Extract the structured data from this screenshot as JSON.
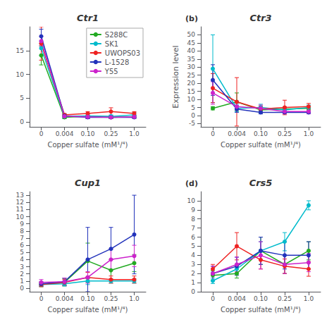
{
  "chart_data": [
    {
      "type": "line",
      "title": "Ctr1",
      "x_label": "Copper sulfate (mM¹/⁴)",
      "categories": [
        "0",
        "0.004",
        "0.10",
        "0.25",
        "1.0"
      ],
      "series": [
        {
          "name": "S288C",
          "color": "#22aa22",
          "values": [
            14.0,
            1.0,
            1.2,
            1.0,
            1.1
          ],
          "yerr": [
            2.0,
            0.3,
            0.5,
            0.3,
            0.3
          ]
        },
        {
          "name": "SK1",
          "color": "#00bbcc",
          "values": [
            15.5,
            1.2,
            1.3,
            1.2,
            1.5
          ],
          "yerr": [
            1.5,
            0.4,
            0.4,
            0.3,
            0.5
          ]
        },
        {
          "name": "UWOPS03",
          "color": "#ee2222",
          "values": [
            16.5,
            1.5,
            1.8,
            2.2,
            1.8
          ],
          "yerr": [
            3.5,
            0.3,
            0.4,
            0.8,
            0.4
          ]
        },
        {
          "name": "L-1528",
          "color": "#2233bb",
          "values": [
            18.0,
            1.3,
            1.0,
            1.0,
            1.0
          ],
          "yerr": [
            1.5,
            0.4,
            0.3,
            0.2,
            0.2
          ]
        },
        {
          "name": "Y55",
          "color": "#cc22cc",
          "values": [
            17.0,
            1.2,
            1.1,
            1.0,
            1.1
          ],
          "yerr": [
            1.0,
            0.3,
            0.3,
            0.3,
            0.3
          ]
        }
      ],
      "ylim": [
        -1,
        20
      ],
      "yticks": [
        0,
        5,
        10,
        15
      ],
      "marker": "circle",
      "grid": false,
      "legend": "upper right"
    },
    {
      "type": "line",
      "title": "Ctr3",
      "x_label": "Copper sulfate (mM¹/⁴)",
      "y_label": "Expression level",
      "annotation": "(b)",
      "categories": [
        "0",
        "0.004",
        "0.10",
        "0.25",
        "1.0"
      ],
      "series": [
        {
          "name": "S288C",
          "color": "#22aa22",
          "values": [
            4.5,
            8.5,
            3.5,
            4.0,
            4.5
          ],
          "yerr": [
            1.0,
            5.5,
            2.0,
            1.5,
            1.5
          ]
        },
        {
          "name": "SK1",
          "color": "#00bbcc",
          "values": [
            29.0,
            4.5,
            5.0,
            3.5,
            5.0
          ],
          "yerr": [
            21.0,
            2.0,
            2.0,
            1.5,
            1.5
          ]
        },
        {
          "name": "UWOPS03",
          "color": "#ee2222",
          "values": [
            17.0,
            8.5,
            4.0,
            5.0,
            5.5
          ],
          "yerr": [
            9.0,
            15.0,
            2.0,
            4.5,
            2.0
          ]
        },
        {
          "name": "L-1528",
          "color": "#2233bb",
          "values": [
            22.0,
            4.0,
            2.0,
            2.0,
            2.0
          ],
          "yerr": [
            9.5,
            2.0,
            1.0,
            0.5,
            0.5
          ]
        },
        {
          "name": "Y55",
          "color": "#cc22cc",
          "values": [
            14.0,
            5.5,
            4.5,
            2.5,
            2.5
          ],
          "yerr": [
            7.0,
            2.0,
            2.0,
            1.5,
            1.5
          ]
        }
      ],
      "ylim": [
        -7,
        55
      ],
      "yticks": [
        -5,
        0,
        5,
        10,
        15,
        20,
        25,
        30,
        35,
        40,
        45,
        50
      ],
      "marker": "circle",
      "grid": false
    },
    {
      "type": "line",
      "title": "Cup1",
      "x_label": "Copper sulfate (mM¹/⁴)",
      "categories": [
        "0",
        "0.004",
        "0.10",
        "0.25",
        "1.0"
      ],
      "series": [
        {
          "name": "S288C",
          "color": "#22aa22",
          "values": [
            0.5,
            0.8,
            3.8,
            2.5,
            3.5
          ],
          "yerr": [
            0.3,
            0.5,
            2.5,
            1.5,
            1.2
          ]
        },
        {
          "name": "SK1",
          "color": "#00bbcc",
          "values": [
            0.5,
            0.6,
            1.0,
            1.0,
            1.0
          ],
          "yerr": [
            0.2,
            0.3,
            0.5,
            0.3,
            0.3
          ]
        },
        {
          "name": "UWOPS03",
          "color": "#ee2222",
          "values": [
            0.5,
            0.8,
            1.5,
            1.2,
            1.2
          ],
          "yerr": [
            0.3,
            0.4,
            0.7,
            0.5,
            0.5
          ]
        },
        {
          "name": "L-1528",
          "color": "#2233bb",
          "values": [
            0.6,
            0.9,
            4.0,
            5.5,
            7.5
          ],
          "yerr": [
            0.3,
            0.5,
            4.5,
            3.0,
            5.5
          ]
        },
        {
          "name": "Y55",
          "color": "#cc22cc",
          "values": [
            0.8,
            0.9,
            1.5,
            4.0,
            4.5
          ],
          "yerr": [
            0.4,
            0.5,
            0.8,
            1.5,
            1.5
          ]
        }
      ],
      "ylim": [
        -0.5,
        13.5
      ],
      "yticks": [
        0,
        1,
        2,
        3,
        4,
        5,
        6,
        7,
        8,
        9,
        10,
        11,
        12,
        13
      ],
      "marker": "circle",
      "grid": false
    },
    {
      "type": "line",
      "title": "Crs5",
      "x_label": "Copper sulfate (mM¹/⁴)",
      "annotation": "(d)",
      "categories": [
        "0",
        "0.004",
        "0.10",
        "0.25",
        "1.0"
      ],
      "series": [
        {
          "name": "S288C",
          "color": "#22aa22",
          "values": [
            1.8,
            2.0,
            4.5,
            3.0,
            4.5
          ],
          "yerr": [
            0.5,
            0.5,
            1.5,
            1.0,
            1.0
          ]
        },
        {
          "name": "SK1",
          "color": "#00bbcc",
          "values": [
            1.2,
            2.5,
            4.5,
            5.5,
            9.5
          ],
          "yerr": [
            0.3,
            0.5,
            1.0,
            1.0,
            0.5
          ]
        },
        {
          "name": "UWOPS03",
          "color": "#ee2222",
          "values": [
            2.5,
            5.0,
            3.5,
            2.8,
            2.5
          ],
          "yerr": [
            0.5,
            1.5,
            1.0,
            0.8,
            0.8
          ]
        },
        {
          "name": "L-1528",
          "color": "#2233bb",
          "values": [
            2.0,
            2.8,
            4.5,
            4.0,
            4.0
          ],
          "yerr": [
            0.8,
            1.0,
            1.5,
            1.5,
            1.5
          ]
        },
        {
          "name": "Y55",
          "color": "#cc22cc",
          "values": [
            2.0,
            3.0,
            4.0,
            3.0,
            3.2
          ],
          "yerr": [
            0.8,
            0.8,
            1.5,
            1.0,
            1.0
          ]
        }
      ],
      "ylim": [
        0,
        11
      ],
      "yticks": [
        0,
        1,
        2,
        3,
        4,
        5,
        6,
        7,
        8,
        9,
        10
      ],
      "marker": "circle",
      "grid": false
    }
  ]
}
